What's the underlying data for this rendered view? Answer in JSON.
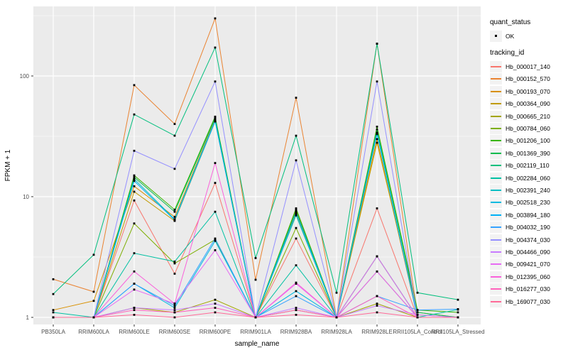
{
  "figure": {
    "background": "#FFFFFF",
    "panel_bg": "#EBEBEB",
    "grid_color": "#FFFFFF",
    "tick_mark_color": "#333333",
    "tick_label_color": "#4D4D4D",
    "axis_title_color": "#000000",
    "marker_color": "#000000",
    "legend_key_bg": "#F2F2F2"
  },
  "chart_data": {
    "type": "line",
    "title": "",
    "xlabel": "sample_name",
    "ylabel": "FPKM + 1",
    "y_scale": "log10",
    "y_ticks": [
      1,
      10,
      100
    ],
    "y_tick_labels": [
      "1",
      "10",
      "100"
    ],
    "y_minor_ticks": [
      3.162,
      31.62,
      316.2
    ],
    "ylim": [
      1,
      372
    ],
    "grid": "on",
    "legend_position": "right",
    "marker_shape": "small-black-point",
    "categories": [
      "PB350LA",
      "RRIM600LA",
      "RRIM600LE",
      "RRIM600SE",
      "RRIM600PE",
      "RRIM901LA",
      "RRIM928BA",
      "RRIM928LA",
      "RRIM928LE",
      "RRII105LA_Control",
      "RRII105LA_Stressed"
    ],
    "series": [
      {
        "name": "Hb_000017_140",
        "color": "#F8766D",
        "values": [
          1.0,
          1.0,
          9.3,
          2.3,
          13,
          1.0,
          4.5,
          1.0,
          8,
          1.0,
          1.0
        ]
      },
      {
        "name": "Hb_000152_570",
        "color": "#EA8331",
        "values": [
          2.07,
          1.63,
          84,
          40,
          300,
          2.05,
          66,
          1.0,
          185,
          1.05,
          1.0
        ]
      },
      {
        "name": "Hb_000193_070",
        "color": "#D89000",
        "values": [
          1.15,
          1.37,
          12.2,
          6.8,
          44,
          1.0,
          7.8,
          1.0,
          30,
          1.0,
          1.0
        ]
      },
      {
        "name": "Hb_000364_090",
        "color": "#C09B00",
        "values": [
          1.0,
          1.0,
          11,
          6.3,
          42,
          1.0,
          7.2,
          1.0,
          28,
          1.1,
          1.0
        ]
      },
      {
        "name": "Hb_000665_210",
        "color": "#A3A500",
        "values": [
          1.0,
          1.0,
          1.2,
          1.1,
          1.4,
          1.0,
          1.15,
          1.0,
          1.3,
          1.0,
          1.0
        ]
      },
      {
        "name": "Hb_000784_060",
        "color": "#7CAE00",
        "values": [
          1.0,
          1.0,
          6.0,
          2.8,
          4.4,
          1.0,
          5.5,
          1.0,
          3.2,
          1.0,
          1.0
        ]
      },
      {
        "name": "Hb_001206_100",
        "color": "#39B600",
        "values": [
          1.0,
          1.0,
          15,
          7.8,
          46,
          1.0,
          8.0,
          1.0,
          38,
          1.15,
          1.1
        ]
      },
      {
        "name": "Hb_001369_390",
        "color": "#00BB4E",
        "values": [
          1.0,
          1.0,
          14.5,
          7.5,
          45,
          1.0,
          7.6,
          1.0,
          36,
          1.1,
          1.0
        ]
      },
      {
        "name": "Hb_002119_110",
        "color": "#00BF7D",
        "values": [
          1.56,
          3.3,
          48,
          32,
          172,
          3.1,
          32,
          1.6,
          185,
          1.6,
          1.4
        ]
      },
      {
        "name": "Hb_002284_060",
        "color": "#00C1A3",
        "values": [
          1.1,
          1.0,
          3.4,
          2.9,
          7.5,
          1.0,
          2.7,
          1.0,
          3.2,
          1.0,
          1.16
        ]
      },
      {
        "name": "Hb_002391_240",
        "color": "#00BFC4",
        "values": [
          1.0,
          1.0,
          14,
          6.5,
          43,
          1.0,
          7.0,
          1.0,
          33,
          1.0,
          1.0
        ]
      },
      {
        "name": "Hb_002518_230",
        "color": "#00BAE0",
        "values": [
          1.0,
          1.0,
          1.9,
          1.2,
          4.3,
          1.0,
          1.65,
          1.0,
          2.4,
          1.0,
          1.0
        ]
      },
      {
        "name": "Hb_003894_180",
        "color": "#00B0F6",
        "values": [
          1.0,
          1.0,
          13.5,
          6.4,
          42,
          1.0,
          7.4,
          1.0,
          34,
          1.0,
          1.0
        ]
      },
      {
        "name": "Hb_004032_190",
        "color": "#35A2FF",
        "values": [
          1.0,
          1.0,
          1.9,
          1.25,
          4.5,
          1.0,
          1.5,
          1.0,
          1.5,
          1.15,
          1.17
        ]
      },
      {
        "name": "Hb_004374_030",
        "color": "#9590FF",
        "values": [
          1.0,
          1.0,
          24,
          17,
          90,
          1.0,
          20,
          1.0,
          90,
          1.0,
          1.0
        ]
      },
      {
        "name": "Hb_004466_090",
        "color": "#C77CFF",
        "values": [
          1.0,
          1.0,
          1.2,
          1.15,
          1.3,
          1.0,
          1.2,
          1.0,
          1.25,
          1.05,
          1.0
        ]
      },
      {
        "name": "Hb_009421_070",
        "color": "#E76BF3",
        "values": [
          1.0,
          1.0,
          1.7,
          1.3,
          3.6,
          1.0,
          1.9,
          1.0,
          3.2,
          1.0,
          1.0
        ]
      },
      {
        "name": "Hb_012395_060",
        "color": "#FA62DB",
        "values": [
          1.0,
          1.0,
          2.4,
          1.3,
          19,
          1.0,
          1.94,
          1.0,
          2.4,
          1.0,
          1.0
        ]
      },
      {
        "name": "Hb_016277_030",
        "color": "#FF62BC",
        "values": [
          1.0,
          1.0,
          1.15,
          1.1,
          1.2,
          1.0,
          1.15,
          1.0,
          1.5,
          1.0,
          1.0
        ]
      },
      {
        "name": "Hb_169077_030",
        "color": "#FF6A98",
        "values": [
          1.0,
          1.0,
          1.05,
          1.0,
          1.1,
          1.0,
          1.05,
          1.0,
          1.1,
          1.0,
          1.0
        ]
      }
    ],
    "legend": {
      "quant_status_title": "quant_status",
      "quant_status_items": [
        "OK"
      ],
      "tracking_title": "tracking_id"
    }
  }
}
